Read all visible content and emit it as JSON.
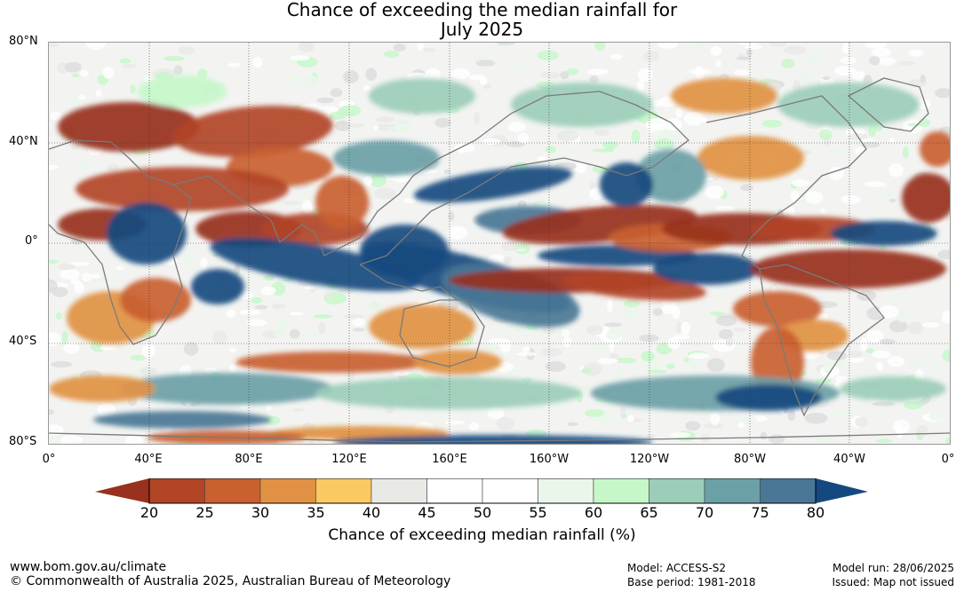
{
  "title": {
    "line1": "Chance of exceeding the median rainfall for",
    "line2": "July 2025"
  },
  "axes": {
    "lat_labels": [
      "80°N",
      "40°N",
      "0°",
      "40°S",
      "80°S"
    ],
    "lon_labels": [
      "0°",
      "40°E",
      "80°E",
      "120°E",
      "160°E",
      "160°W",
      "120°W",
      "80°W",
      "40°W",
      "0°"
    ]
  },
  "map": {
    "projection": "equirectangular",
    "lon_range": [
      0,
      360
    ],
    "lat_range": [
      -80,
      80
    ],
    "gridlines": "dotted every 40°",
    "dominant_patterns": [
      {
        "region": "Maritime Continent & equatorial Indian Ocean",
        "category": "wetter (70-80%+)",
        "color": "#14497f"
      },
      {
        "region": "Central/east equatorial Pacific band",
        "category": "drier (<25%)",
        "color": "#98311d"
      },
      {
        "region": "Mediterranean / Middle East",
        "category": "drier (<25%)",
        "color": "#98311d"
      },
      {
        "region": "Equatorial Atlantic & West Africa",
        "category": "drier (<25%)",
        "color": "#98311d"
      },
      {
        "region": "Southern Ocean",
        "category": "wetter (65-75%)",
        "color": "#6ba0a6"
      }
    ]
  },
  "colorbar": {
    "label": "Chance of exceeding median rainfall (%)",
    "ticks": [
      "20",
      "25",
      "30",
      "35",
      "40",
      "45",
      "50",
      "55",
      "60",
      "65",
      "70",
      "75",
      "80"
    ],
    "low_extend_color": "#98311d",
    "high_extend_color": "#14497f",
    "colors": [
      "#b24526",
      "#c9602f",
      "#e19143",
      "#fbc961",
      "#e9e9e6",
      "#ffffff",
      "#ffffff",
      "#eaf6ea",
      "#c6f7c9",
      "#9ccdb8",
      "#6ba0a6",
      "#4a7796"
    ]
  },
  "footer": {
    "website": "www.bom.gov.au/climate",
    "copyright": "© Commonwealth of Australia 2025, Australian Bureau of Meteorology",
    "model": "Model: ACCESS-S2",
    "base_period": "Base period: 1981-2018",
    "model_run": "Model run: 28/06/2025",
    "issued": "Issued: Map not issued"
  }
}
